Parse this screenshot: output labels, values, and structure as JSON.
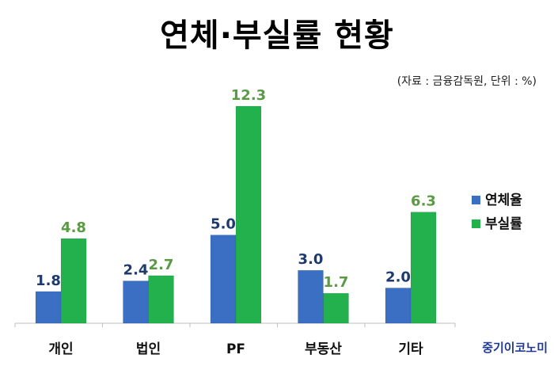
{
  "chart_data": {
    "type": "bar",
    "title": "연체·부실률 현황",
    "subtitle": "(자료 : 금융감독원, 단위 : %)",
    "categories": [
      "개인",
      "법인",
      "PF",
      "부동산",
      "기타"
    ],
    "series": [
      {
        "name": "연체율",
        "values": [
          1.8,
          2.4,
          5.0,
          3.0,
          2.0
        ],
        "color": "#3b6fc4",
        "label_color": "#1f3b6e"
      },
      {
        "name": "부실률",
        "values": [
          4.8,
          2.7,
          12.3,
          1.7,
          6.3
        ],
        "color": "#22b14c",
        "label_color": "#5a9a45"
      }
    ],
    "ylim": [
      0,
      12.3
    ],
    "grid": false,
    "legend_position": "right",
    "xlabel": "",
    "ylabel": ""
  },
  "branding": {
    "text": "중기이코노미"
  }
}
